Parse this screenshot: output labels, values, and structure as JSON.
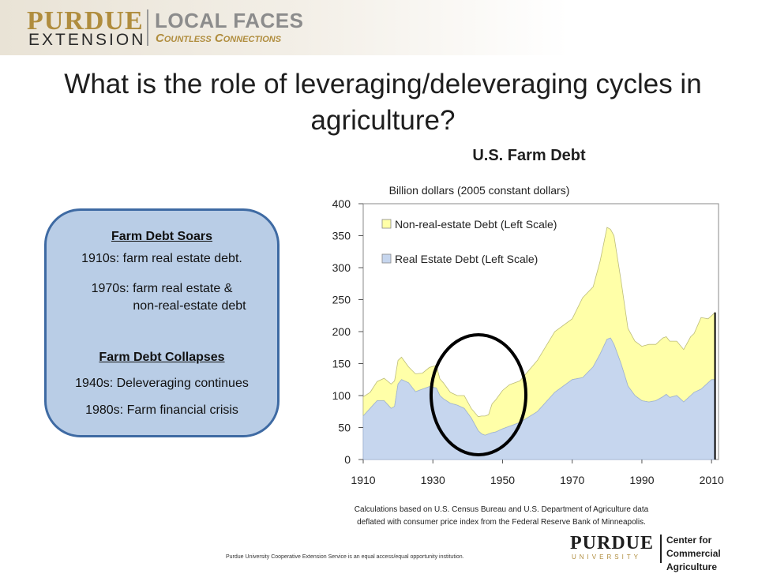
{
  "header": {
    "logo_purdue": "PURDUE",
    "logo_extension": "EXTENSION",
    "logo_local_faces": "LOCAL FACES",
    "logo_countless": "Countless Connections"
  },
  "slide": {
    "title": "What is the role of leveraging/deleveraging cycles in agriculture?"
  },
  "panel": {
    "heading_1": "Farm Debt Soars",
    "line_1": "1910s: farm real estate debt.",
    "line_2": "1970s: farm real estate &",
    "line_3": "non-real-estate debt",
    "heading_2": "Farm Debt Collapses",
    "line_4": "1940s: Deleveraging continues",
    "line_5": "1980s: Farm financial crisis"
  },
  "chart_data": {
    "type": "area",
    "title": "U.S. Farm Debt",
    "subtitle": "Billion dollars (2005 constant dollars)",
    "xlabel": "",
    "ylabel": "",
    "xlim": [
      1910,
      2012
    ],
    "ylim": [
      0,
      400
    ],
    "x_ticks": [
      1910,
      1930,
      1950,
      1970,
      1990,
      2010
    ],
    "y_ticks": [
      0,
      50,
      100,
      150,
      200,
      250,
      300,
      350,
      400
    ],
    "stacked": true,
    "legend_position": "top-left",
    "x": [
      1910,
      1912,
      1914,
      1916,
      1918,
      1919,
      1920,
      1921,
      1923,
      1925,
      1927,
      1929,
      1931,
      1932,
      1933,
      1935,
      1937,
      1939,
      1941,
      1943,
      1944,
      1945,
      1946,
      1947,
      1948,
      1950,
      1952,
      1955,
      1960,
      1965,
      1970,
      1973,
      1976,
      1978,
      1980,
      1981,
      1982,
      1984,
      1986,
      1988,
      1990,
      1992,
      1994,
      1996,
      1997,
      1998,
      2000,
      2002,
      2004,
      2005,
      2007,
      2009,
      2010,
      2011
    ],
    "series": [
      {
        "name": "Real Estate Debt (Left Scale)",
        "color": "#c6d6ee",
        "values": [
          68,
          80,
          92,
          92,
          80,
          83,
          118,
          125,
          120,
          106,
          110,
          114,
          112,
          100,
          95,
          88,
          85,
          80,
          65,
          45,
          40,
          38,
          40,
          42,
          43,
          48,
          52,
          58,
          75,
          105,
          125,
          128,
          145,
          165,
          188,
          190,
          180,
          150,
          115,
          100,
          92,
          90,
          92,
          98,
          102,
          97,
          100,
          90,
          100,
          105,
          110,
          120,
          125,
          125
        ]
      },
      {
        "name": "Non-real-estate Debt (Left Scale)",
        "color": "#ffffa8",
        "values": [
          30,
          25,
          30,
          35,
          38,
          40,
          37,
          35,
          25,
          28,
          25,
          30,
          35,
          26,
          25,
          17,
          15,
          20,
          15,
          22,
          28,
          30,
          30,
          45,
          50,
          60,
          65,
          65,
          80,
          95,
          95,
          125,
          125,
          145,
          175,
          170,
          170,
          130,
          90,
          85,
          85,
          90,
          88,
          92,
          90,
          88,
          85,
          82,
          92,
          92,
          112,
          100,
          100,
          105
        ]
      }
    ]
  },
  "source_note_1": "Calculations based on U.S. Census Bureau and U.S. Department of Agriculture data",
  "source_note_2": "deflated with consumer price index from the Federal Reserve Bank of Minneapolis.",
  "footer_note": "Purdue University Cooperative Extension Service is an equal access/equal opportunity institution.",
  "footer_logo": {
    "purdue": "PURDUE",
    "university": "UNIVERSITY",
    "center_line_1": "Center for",
    "center_line_2": "Commercial Agriculture"
  },
  "colors": {
    "panel_fill": "#b9cde6",
    "panel_border": "#3e6aa3",
    "brand_gold": "#b08d3e",
    "ellipse_stroke": "#000000"
  }
}
